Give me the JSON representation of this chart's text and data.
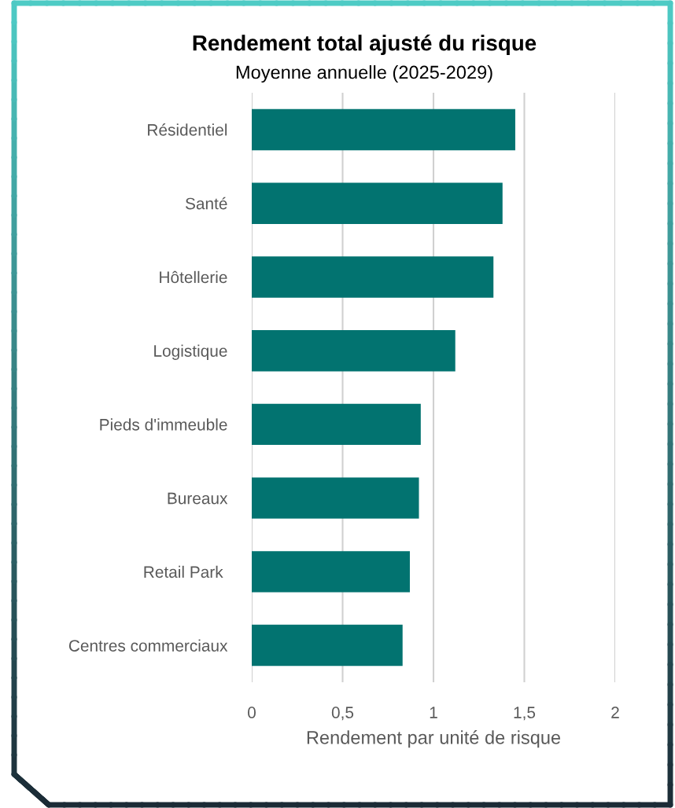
{
  "chart_data": {
    "type": "bar",
    "orientation": "horizontal",
    "title": "Rendement total ajusté du risque",
    "subtitle": "Moyenne annuelle (2025-2029)",
    "xlabel": "Rendement par unité de risque",
    "categories": [
      "Résidentiel",
      "Santé",
      "Hôtellerie",
      "Logistique",
      "Pieds d'immeuble",
      "Bureaux",
      "Retail Park ",
      "Centres commerciaux"
    ],
    "values": [
      1.45,
      1.38,
      1.33,
      1.12,
      0.93,
      0.92,
      0.87,
      0.83
    ],
    "color": "#027370",
    "xlim": [
      0,
      2
    ],
    "xticks": [
      0,
      {
        "value": 0.5,
        "label": "0,5"
      },
      1,
      {
        "value": 1.5,
        "label": "1,5"
      },
      2
    ],
    "grid": "x"
  }
}
